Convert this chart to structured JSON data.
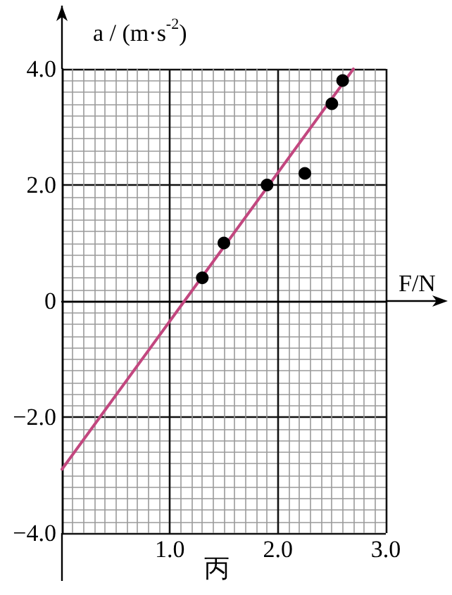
{
  "chart_data": {
    "type": "scatter",
    "xlabel": "F/N",
    "ylabel": "a / (m·s$^{-2}$)",
    "series": [
      {
        "color": "#000000",
        "x": [
          1.3,
          1.5,
          1.9,
          2.25,
          2.5,
          2.6
        ],
        "values": [
          0.4,
          1.0,
          2.0,
          2.2,
          3.4,
          3.8
        ],
        "marker": "circle"
      },
      {
        "type": "line",
        "color": "#c2477f",
        "x": [
          0,
          2.7
        ],
        "values": [
          -2.9,
          4.0
        ],
        "marker": "none"
      }
    ],
    "xlim": [
      0,
      3
    ],
    "ylim": [
      -4,
      4
    ],
    "xticks": [
      {
        "value": 0,
        "label": null
      },
      {
        "value": 1,
        "label": "1.0"
      },
      {
        "value": 2,
        "label": "2.0"
      },
      {
        "value": 3,
        "label": "3.0"
      }
    ],
    "yticks": [
      {
        "value": -4,
        "label": "−4.0"
      },
      {
        "value": -2,
        "label": "−2.0"
      },
      {
        "value": 0,
        "label": "0"
      },
      {
        "value": 2,
        "label": "2.0"
      },
      {
        "value": 4,
        "label": "4.0"
      }
    ],
    "grid": true,
    "annotations": [
      "丙"
    ]
  }
}
